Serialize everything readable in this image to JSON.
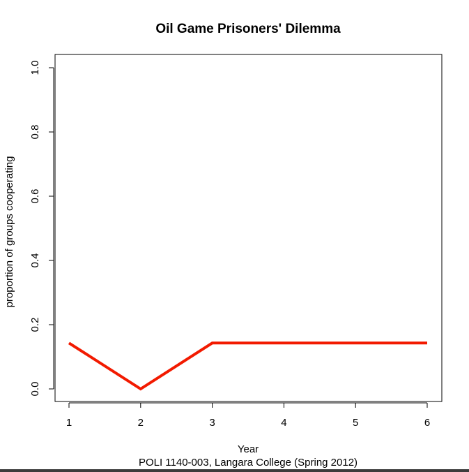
{
  "chart_data": {
    "type": "line",
    "title": "Oil Game Prisoners' Dilemma",
    "xlabel": "Year",
    "ylabel": "proportion of groups cooperating",
    "subtitle": "POLI 1140-003, Langara College (Spring 2012)",
    "x": [
      1,
      2,
      3,
      4,
      5,
      6
    ],
    "x_ticks": [
      "1",
      "2",
      "3",
      "4",
      "5",
      "6"
    ],
    "y_ticks": [
      "0.0",
      "0.2",
      "0.4",
      "0.6",
      "0.8",
      "1.0"
    ],
    "xlim": [
      1,
      6
    ],
    "ylim": [
      0,
      1
    ],
    "grid": false,
    "series": [
      {
        "values": [
          0.1429,
          0,
          0.1429,
          0.1429,
          0.1429,
          0.1429
        ],
        "color": "#f21a00"
      }
    ]
  }
}
